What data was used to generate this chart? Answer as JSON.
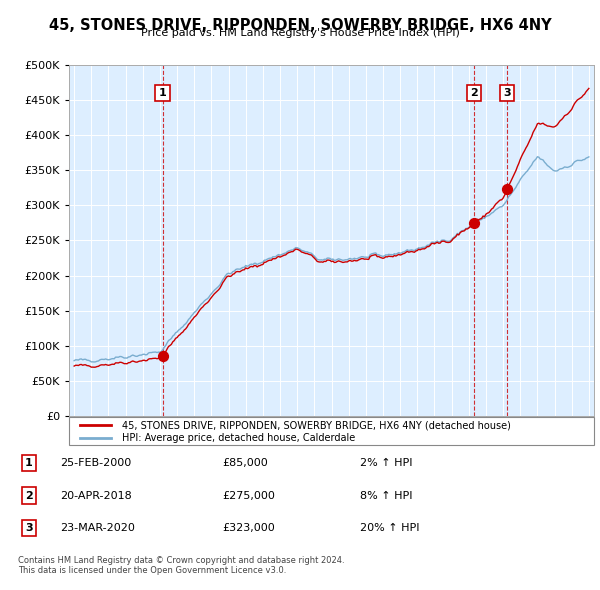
{
  "title": "45, STONES DRIVE, RIPPONDEN, SOWERBY BRIDGE, HX6 4NY",
  "subtitle": "Price paid vs. HM Land Registry's House Price Index (HPI)",
  "ylim": [
    0,
    500000
  ],
  "yticks": [
    0,
    50000,
    100000,
    150000,
    200000,
    250000,
    300000,
    350000,
    400000,
    450000,
    500000
  ],
  "red_line_color": "#cc0000",
  "blue_line_color": "#7aadcf",
  "vline_color": "#cc0000",
  "bg_color": "#ddeeff",
  "sales": [
    {
      "date_num": 2000.15,
      "price": 85000,
      "label": "1"
    },
    {
      "date_num": 2018.3,
      "price": 275000,
      "label": "2"
    },
    {
      "date_num": 2020.23,
      "price": 323000,
      "label": "3"
    }
  ],
  "legend_red_label": "45, STONES DRIVE, RIPPONDEN, SOWERBY BRIDGE, HX6 4NY (detached house)",
  "legend_blue_label": "HPI: Average price, detached house, Calderdale",
  "table_data": [
    {
      "num": "1",
      "date": "25-FEB-2000",
      "price": "£85,000",
      "hpi": "2% ↑ HPI"
    },
    {
      "num": "2",
      "date": "20-APR-2018",
      "price": "£275,000",
      "hpi": "8% ↑ HPI"
    },
    {
      "num": "3",
      "date": "23-MAR-2020",
      "price": "£323,000",
      "hpi": "20% ↑ HPI"
    }
  ],
  "footer1": "Contains HM Land Registry data © Crown copyright and database right 2024.",
  "footer2": "This data is licensed under the Open Government Licence v3.0."
}
